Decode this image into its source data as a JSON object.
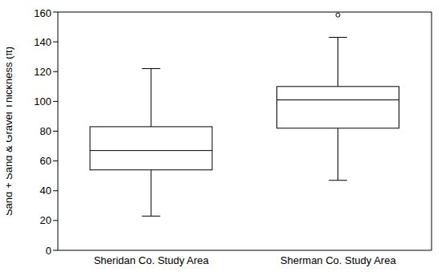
{
  "chart_data": {
    "type": "box",
    "ylabel": "Sand + Sand & Gravel Thickness (ft)",
    "categories": [
      "Sheridan Co. Study Area",
      "Sherman Co. Study Area"
    ],
    "values": [
      {
        "whisker_low": 23,
        "q1": 54,
        "median": 67,
        "q3": 83,
        "whisker_high": 122,
        "outliers": []
      },
      {
        "whisker_low": 47,
        "q1": 82,
        "median": 101,
        "q3": 110,
        "whisker_high": 143,
        "outliers": [
          158
        ]
      }
    ],
    "ylim": [
      0,
      160
    ],
    "yticks": [
      0,
      20,
      40,
      60,
      80,
      100,
      120,
      140,
      160
    ],
    "grid": false,
    "color": "#000000"
  }
}
